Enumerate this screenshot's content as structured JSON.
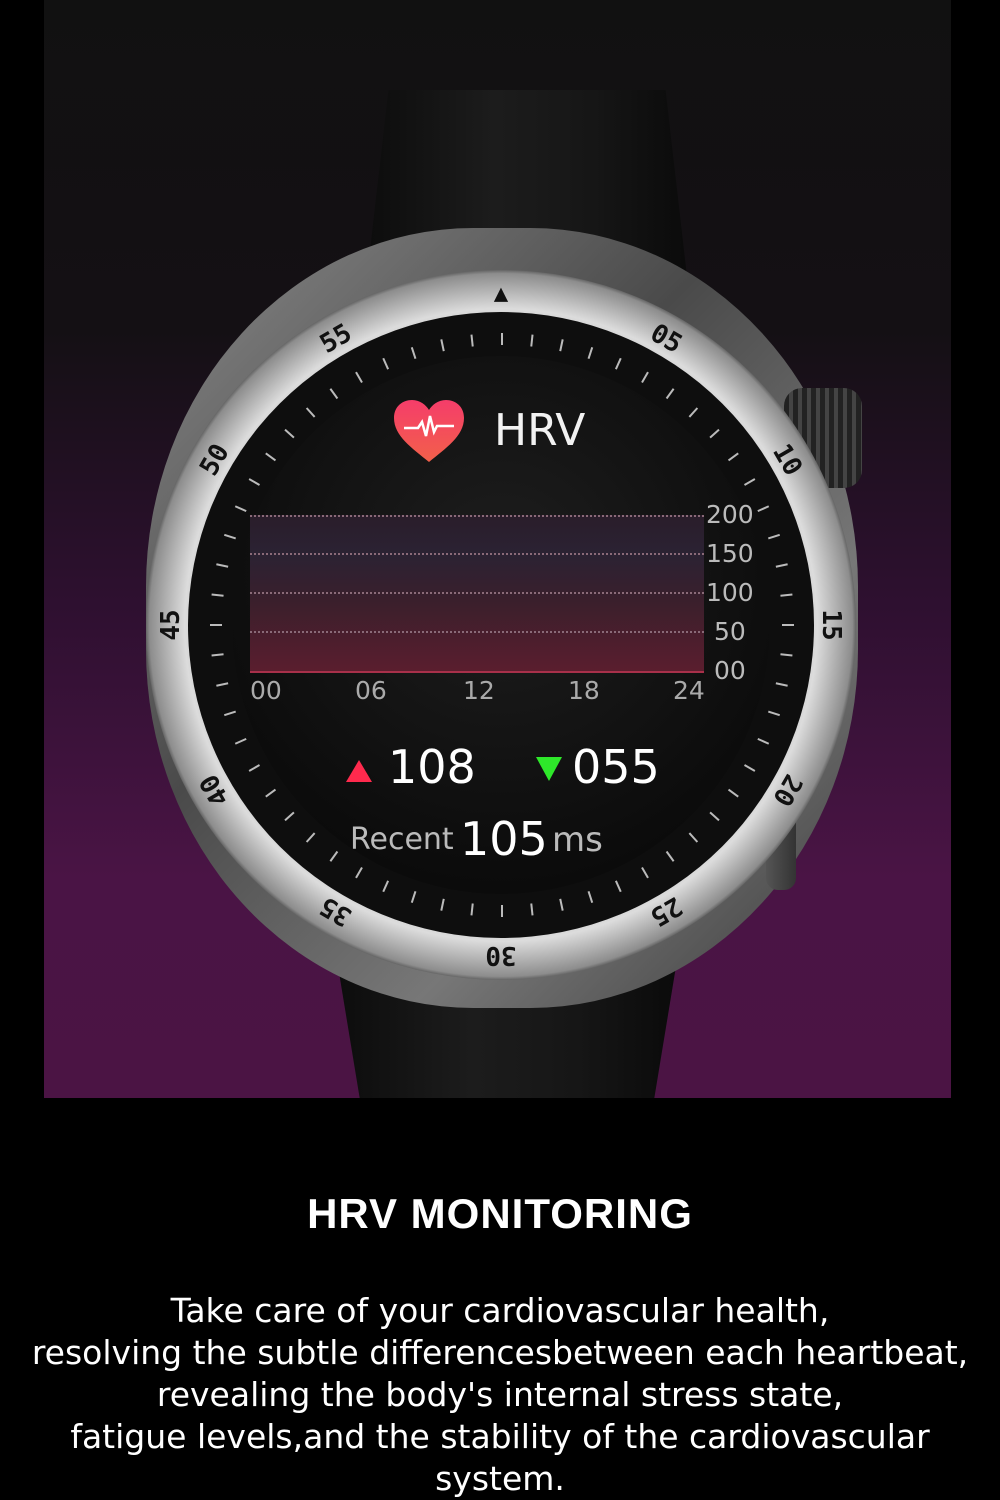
{
  "watch": {
    "bezel_labels": [
      "05",
      "10",
      "15",
      "20",
      "25",
      "30",
      "35",
      "40",
      "45",
      "50",
      "55"
    ],
    "screen": {
      "title": "HRV",
      "icon": "heart-pulse-icon",
      "chart": {
        "type": "area",
        "y_ticks": [
          "200",
          "150",
          "100",
          "50",
          "00"
        ],
        "x_ticks": [
          "00",
          "06",
          "12",
          "18",
          "24"
        ],
        "ylim": [
          0,
          200
        ],
        "grid": true
      },
      "max_value": "108",
      "min_value": "055",
      "recent_label": "Recent",
      "recent_value": "105",
      "recent_unit": "ms"
    },
    "colors": {
      "up": "#ff2a4d",
      "down": "#2ee82a",
      "heart": "#f4425f"
    }
  },
  "headline": "HRV MONITORING",
  "description_lines": [
    "Take care of your cardiovascular health,",
    "resolving the subtle differencesbetween each heartbeat,",
    "revealing the body's internal stress state,",
    "fatigue levels,and the stability of the cardiovascular",
    "system."
  ]
}
